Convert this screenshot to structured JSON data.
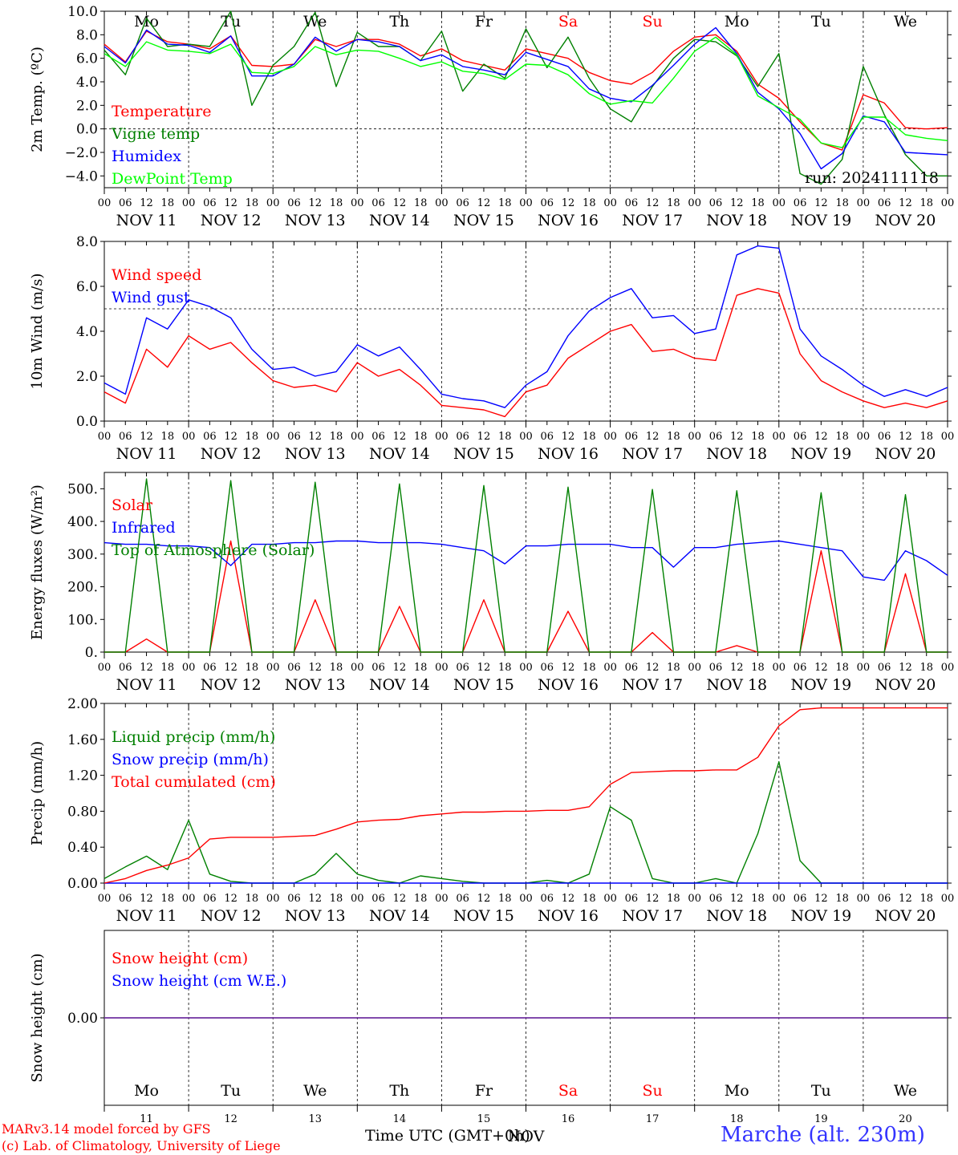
{
  "chart_data": [
    {
      "type": "line",
      "ylabel": "2m Temp. (ºC)",
      "ylim": [
        -5.0,
        10.0
      ],
      "yticks": [
        "10.0",
        "8.0",
        "6.0",
        "4.0",
        "2.0",
        "0.0",
        "−2.0",
        "−4.0"
      ],
      "ytick_values": [
        10,
        8,
        6,
        4,
        2,
        0,
        -2,
        -4
      ],
      "ref_line": 0,
      "x_hours": [
        0,
        6,
        12,
        18,
        24,
        30,
        36,
        42,
        48,
        54,
        60,
        66,
        72,
        78,
        84,
        90,
        96,
        102,
        108,
        114,
        120,
        126,
        132,
        138,
        144,
        150,
        156,
        162,
        168,
        174,
        180,
        186,
        192,
        198,
        204,
        210,
        216,
        222,
        228,
        234,
        240
      ],
      "annotation": "run: 2024111118",
      "series": [
        {
          "name": "Temperature",
          "color": "#ff0000",
          "values": [
            7.2,
            5.7,
            8.3,
            7.4,
            7.2,
            6.8,
            7.9,
            5.4,
            5.3,
            5.5,
            7.6,
            7.0,
            7.6,
            7.6,
            7.2,
            6.2,
            6.8,
            5.8,
            5.4,
            5.0,
            6.8,
            6.4,
            6.0,
            4.8,
            4.1,
            3.8,
            4.8,
            6.6,
            7.8,
            8.0,
            6.6,
            3.8,
            2.6,
            0.6,
            -1.2,
            -1.8,
            2.9,
            2.2,
            0.1,
            0.0,
            0.1
          ]
        },
        {
          "name": "Vigne temp",
          "color": "#008000",
          "values": [
            6.7,
            4.6,
            9.4,
            7.0,
            7.2,
            7.0,
            10.0,
            2.0,
            5.4,
            7.0,
            9.9,
            3.6,
            8.2,
            7.0,
            7.0,
            5.8,
            8.3,
            3.2,
            5.5,
            4.3,
            8.5,
            5.2,
            7.8,
            4.3,
            1.7,
            0.6,
            3.6,
            6.0,
            7.6,
            7.4,
            6.2,
            3.6,
            6.4,
            -3.8,
            -4.7,
            -2.6,
            5.3,
            1.2,
            -2.2,
            -4.0,
            -4.0
          ]
        },
        {
          "name": "Humidex",
          "color": "#0000ff",
          "values": [
            7.0,
            5.6,
            8.4,
            7.2,
            7.1,
            6.5,
            7.9,
            4.5,
            4.5,
            5.5,
            7.8,
            6.6,
            7.6,
            7.4,
            7.0,
            5.8,
            6.3,
            5.3,
            5.0,
            4.6,
            6.5,
            5.9,
            5.3,
            3.4,
            2.6,
            2.3,
            3.7,
            5.4,
            7.2,
            8.6,
            6.4,
            3.1,
            1.7,
            -0.4,
            -3.4,
            -2.1,
            1.1,
            0.6,
            -2.0,
            -2.1,
            -2.2
          ]
        },
        {
          "name": "DewPoint Temp",
          "color": "#00ff00",
          "values": [
            6.4,
            5.3,
            7.4,
            6.7,
            6.6,
            6.4,
            7.2,
            4.8,
            4.7,
            5.3,
            7.0,
            6.3,
            6.7,
            6.6,
            6.0,
            5.3,
            5.7,
            4.9,
            4.7,
            4.2,
            5.5,
            5.4,
            4.6,
            3.0,
            2.1,
            2.4,
            2.2,
            4.3,
            6.6,
            7.8,
            6.3,
            2.8,
            1.8,
            0.8,
            -1.2,
            -1.6,
            1.0,
            1.0,
            -0.5,
            -0.8,
            -1.0
          ]
        }
      ]
    },
    {
      "type": "line",
      "ylabel": "10m Wind (m/s)",
      "ylim": [
        0.0,
        8.0
      ],
      "yticks": [
        "8.0",
        "6.0",
        "4.0",
        "2.0",
        "0.0"
      ],
      "ytick_values": [
        8,
        6,
        4,
        2,
        0
      ],
      "ref_line": 5,
      "x_hours": [
        0,
        6,
        12,
        18,
        24,
        30,
        36,
        42,
        48,
        54,
        60,
        66,
        72,
        78,
        84,
        90,
        96,
        102,
        108,
        114,
        120,
        126,
        132,
        138,
        144,
        150,
        156,
        162,
        168,
        174,
        180,
        186,
        192,
        198,
        204,
        210,
        216,
        222,
        228,
        234,
        240
      ],
      "series": [
        {
          "name": "Wind speed",
          "color": "#ff0000",
          "values": [
            1.3,
            0.8,
            3.2,
            2.4,
            3.8,
            3.2,
            3.5,
            2.6,
            1.8,
            1.5,
            1.6,
            1.3,
            2.6,
            2.0,
            2.3,
            1.6,
            0.7,
            0.6,
            0.5,
            0.2,
            1.3,
            1.6,
            2.8,
            3.4,
            4.0,
            4.3,
            3.1,
            3.2,
            2.8,
            2.7,
            5.6,
            5.9,
            5.7,
            3.0,
            1.8,
            1.3,
            0.9,
            0.6,
            0.8,
            0.6,
            0.9
          ]
        },
        {
          "name": "Wind gust",
          "color": "#0000ff",
          "values": [
            1.7,
            1.2,
            4.6,
            4.1,
            5.4,
            5.1,
            4.6,
            3.2,
            2.3,
            2.4,
            2.0,
            2.2,
            3.4,
            2.9,
            3.3,
            2.3,
            1.2,
            1.0,
            0.9,
            0.6,
            1.6,
            2.2,
            3.8,
            4.9,
            5.5,
            5.9,
            4.6,
            4.7,
            3.9,
            4.1,
            7.4,
            7.8,
            7.7,
            4.1,
            2.9,
            2.3,
            1.6,
            1.1,
            1.4,
            1.1,
            1.5
          ]
        }
      ]
    },
    {
      "type": "line",
      "ylabel": "Energy fluxes (W/m²)",
      "ylim": [
        0,
        550
      ],
      "yticks": [
        "500.",
        "400.",
        "300.",
        "200.",
        "100.",
        "0."
      ],
      "ytick_values": [
        500,
        400,
        300,
        200,
        100,
        0
      ],
      "x_hours": [
        0,
        6,
        12,
        18,
        24,
        30,
        36,
        42,
        48,
        54,
        60,
        66,
        72,
        78,
        84,
        90,
        96,
        102,
        108,
        114,
        120,
        126,
        132,
        138,
        144,
        150,
        156,
        162,
        168,
        174,
        180,
        186,
        192,
        198,
        204,
        210,
        216,
        222,
        228,
        234,
        240
      ],
      "series": [
        {
          "name": "Solar",
          "color": "#ff0000",
          "values": [
            0,
            0,
            40,
            0,
            0,
            0,
            340,
            0,
            0,
            0,
            160,
            0,
            0,
            0,
            140,
            0,
            0,
            0,
            160,
            0,
            0,
            0,
            125,
            0,
            0,
            0,
            60,
            0,
            0,
            0,
            20,
            0,
            0,
            0,
            310,
            0,
            0,
            0,
            240,
            0,
            0
          ]
        },
        {
          "name": "Infrared",
          "color": "#0000ff",
          "values": [
            335,
            330,
            330,
            325,
            325,
            320,
            265,
            330,
            330,
            335,
            335,
            340,
            340,
            335,
            335,
            335,
            330,
            320,
            310,
            270,
            325,
            325,
            330,
            330,
            330,
            320,
            320,
            260,
            320,
            320,
            330,
            335,
            340,
            330,
            320,
            310,
            230,
            220,
            310,
            280,
            235
          ]
        },
        {
          "name": "Top of Atmosphere (Solar)",
          "color": "#008000",
          "values": [
            0,
            0,
            530,
            0,
            0,
            0,
            525,
            0,
            0,
            0,
            520,
            0,
            0,
            0,
            515,
            0,
            0,
            0,
            510,
            0,
            0,
            0,
            505,
            0,
            0,
            0,
            498,
            0,
            0,
            0,
            494,
            0,
            0,
            0,
            488,
            0,
            0,
            0,
            482,
            0,
            0
          ]
        }
      ]
    },
    {
      "type": "line",
      "ylabel": "Precip (mm/h)",
      "ylim": [
        0.0,
        2.0
      ],
      "yticks": [
        "2.00",
        "1.60",
        "1.20",
        "0.80",
        "0.40",
        "0.00"
      ],
      "ytick_values": [
        2.0,
        1.6,
        1.2,
        0.8,
        0.4,
        0.0
      ],
      "x_hours": [
        0,
        6,
        12,
        18,
        24,
        30,
        36,
        42,
        48,
        54,
        60,
        66,
        72,
        78,
        84,
        90,
        96,
        102,
        108,
        114,
        120,
        126,
        132,
        138,
        144,
        150,
        156,
        162,
        168,
        174,
        180,
        186,
        192,
        198,
        204,
        210,
        216,
        222,
        228,
        234,
        240
      ],
      "series": [
        {
          "name": "Liquid precip (mm/h)",
          "color": "#008000",
          "values": [
            0.05,
            0.18,
            0.3,
            0.15,
            0.7,
            0.1,
            0.02,
            0.0,
            0.0,
            0.0,
            0.1,
            0.33,
            0.1,
            0.03,
            0.0,
            0.08,
            0.05,
            0.02,
            0.0,
            0.0,
            0.0,
            0.03,
            0.0,
            0.1,
            0.85,
            0.7,
            0.05,
            0.0,
            0.0,
            0.05,
            0.0,
            0.55,
            1.35,
            0.25,
            0.0,
            0.0,
            0.0,
            0.0,
            0.0,
            0.0,
            0.0
          ]
        },
        {
          "name": "Snow precip (mm/h)",
          "color": "#0000ff",
          "values": [
            0,
            0,
            0,
            0,
            0,
            0,
            0,
            0,
            0,
            0,
            0,
            0,
            0,
            0,
            0,
            0,
            0,
            0,
            0,
            0,
            0,
            0,
            0,
            0,
            0,
            0,
            0,
            0,
            0,
            0,
            0,
            0,
            0,
            0,
            0,
            0,
            0,
            0,
            0,
            0,
            0
          ]
        },
        {
          "name": "Total cumulated (cm)",
          "color": "#ff0000",
          "values": [
            0.0,
            0.05,
            0.14,
            0.2,
            0.28,
            0.49,
            0.51,
            0.51,
            0.51,
            0.52,
            0.53,
            0.6,
            0.68,
            0.7,
            0.71,
            0.75,
            0.77,
            0.79,
            0.79,
            0.8,
            0.8,
            0.81,
            0.81,
            0.85,
            1.1,
            1.23,
            1.24,
            1.25,
            1.25,
            1.26,
            1.26,
            1.4,
            1.75,
            1.93,
            1.95,
            1.95,
            1.95,
            1.95,
            1.95,
            1.95,
            1.95
          ]
        }
      ]
    },
    {
      "type": "line",
      "ylabel": "Snow height (cm)",
      "ylim": [
        -1.0,
        1.0
      ],
      "yticks": [
        "0.00"
      ],
      "ytick_values": [
        0
      ],
      "x_hours": [
        0,
        240
      ],
      "series": [
        {
          "name": "Snow height (cm)",
          "color": "#ff0000",
          "values": [
            0,
            0
          ]
        },
        {
          "name": "Snow height (cm W.E.)",
          "color": "#0000ff",
          "values": [
            0,
            0
          ]
        }
      ]
    }
  ],
  "x_axis": {
    "hour_ticks": [
      "00",
      "06",
      "12",
      "18"
    ],
    "end_tick": "00",
    "dates": [
      "NOV 11",
      "NOV 12",
      "NOV 13",
      "NOV 14",
      "NOV 15",
      "NOV 16",
      "NOV 17",
      "NOV 18",
      "NOV 19",
      "NOV 20"
    ],
    "weekdays": [
      "Mo",
      "Tu",
      "We",
      "Th",
      "Fr",
      "Sa",
      "Su",
      "Mo",
      "Tu",
      "We"
    ],
    "weekday_colors": [
      "#000000",
      "#000000",
      "#000000",
      "#000000",
      "#000000",
      "#ff0000",
      "#ff0000",
      "#000000",
      "#000000",
      "#000000"
    ],
    "day_numbers": [
      "11",
      "12",
      "13",
      "14",
      "15",
      "16",
      "17",
      "18",
      "19",
      "20"
    ],
    "month": "NOV",
    "title": "Time UTC (GMT+0h)"
  },
  "footer": {
    "credit_line1": "MARv3.14 model forced by GFS",
    "credit_line2": "(c) Lab. of Climatology, University of Liege",
    "station": "Marche (alt. 230m)"
  },
  "colors": {
    "snow_line": "#7030a0",
    "station": "#3333ff",
    "credits": "#ff0000"
  }
}
